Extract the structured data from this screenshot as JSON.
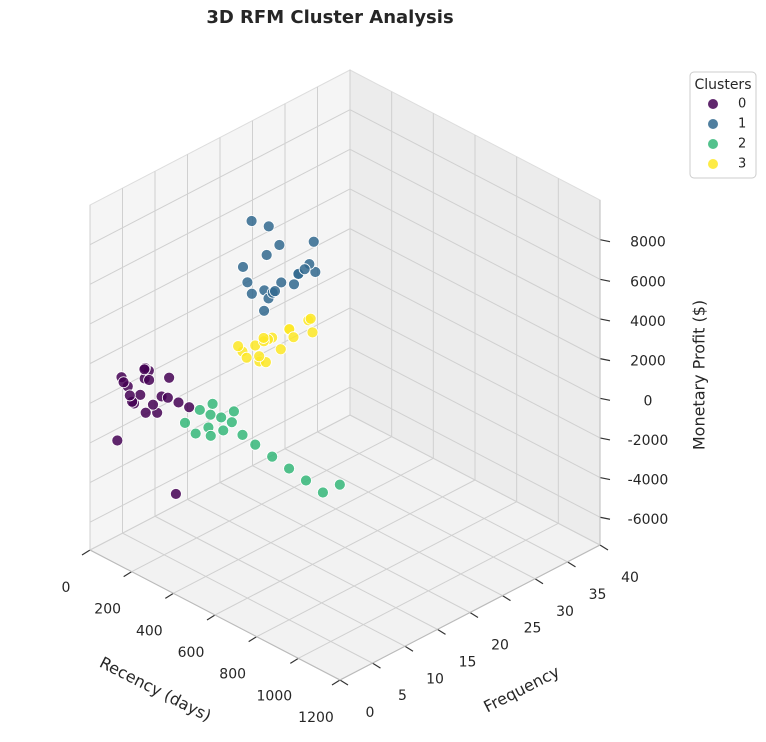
{
  "chart_data": {
    "type": "scatter3d",
    "title": "3D RFM Cluster Analysis",
    "xlabel": "Recency (days)",
    "ylabel": "Frequency",
    "zlabel": "Monetary Profit ($)",
    "legend_title": "Clusters",
    "legend_position": "upper right",
    "xlim": [
      0,
      1200
    ],
    "ylim": [
      0,
      40
    ],
    "zlim": [
      -7400,
      10000
    ],
    "xticks": [
      0,
      200,
      400,
      600,
      800,
      1000,
      1200
    ],
    "yticks": [
      0,
      5,
      10,
      15,
      20,
      25,
      30,
      35,
      40
    ],
    "zticks": [
      -6000,
      -4000,
      -2000,
      0,
      2000,
      4000,
      6000,
      8000
    ],
    "grid": true,
    "series": [
      {
        "name": "0",
        "color": "#440154",
        "x": [
          150,
          200,
          250,
          180,
          220,
          120,
          300,
          260,
          170,
          210,
          240,
          140,
          190,
          230,
          280,
          160,
          205,
          255,
          130,
          320,
          350,
          100
        ],
        "y": [
          1,
          2,
          3,
          1,
          2,
          1,
          4,
          2,
          3,
          1,
          2,
          2,
          3,
          1,
          3,
          1,
          2,
          4,
          1,
          5,
          2,
          1
        ],
        "z": [
          1500,
          2000,
          1200,
          800,
          2500,
          1800,
          1000,
          600,
          2200,
          1400,
          900,
          500,
          1700,
          2800,
          1300,
          1100,
          300,
          2000,
          1600,
          700,
          -3000,
          -1500
        ]
      },
      {
        "name": "1",
        "color": "#31688e",
        "x": [
          400,
          450,
          350,
          500,
          420,
          380,
          470,
          430,
          360,
          520,
          410,
          440,
          390,
          480,
          460,
          370,
          420,
          500,
          340,
          450
        ],
        "y": [
          14,
          15,
          13,
          16,
          14,
          15,
          17,
          13,
          12,
          18,
          16,
          14,
          15,
          16,
          19,
          13,
          15,
          17,
          14,
          20
        ],
        "z": [
          5500,
          6000,
          5800,
          6500,
          5200,
          7000,
          6200,
          4800,
          6800,
          6400,
          7500,
          5600,
          8500,
          5900,
          6300,
          9000,
          5400,
          6600,
          5000,
          7200
        ]
      },
      {
        "name": "2",
        "color": "#35b779",
        "x": [
          350,
          380,
          320,
          400,
          360,
          420,
          340,
          300,
          450,
          390,
          370,
          500,
          550,
          600,
          650,
          700,
          330,
          410
        ],
        "y": [
          7,
          8,
          6,
          9,
          7,
          10,
          6,
          5,
          11,
          8,
          7,
          12,
          13,
          14,
          15,
          16,
          8,
          9
        ],
        "z": [
          -500,
          0,
          -800,
          -300,
          200,
          -1000,
          500,
          -200,
          -1500,
          -600,
          800,
          -2000,
          -2500,
          -3000,
          -3500,
          -3000,
          -1200,
          300
        ]
      },
      {
        "name": "3",
        "color": "#fde725",
        "x": [
          450,
          500,
          420,
          550,
          480,
          470,
          520,
          440,
          580,
          460,
          510,
          490,
          430,
          540,
          560,
          470,
          500,
          600
        ],
        "y": [
          11,
          12,
          10,
          13,
          12,
          11,
          14,
          10,
          15,
          12,
          13,
          11,
          9,
          14,
          16,
          12,
          10,
          15
        ],
        "z": [
          3500,
          4000,
          3200,
          4500,
          3800,
          2800,
          4200,
          3000,
          4800,
          3600,
          3300,
          4100,
          3700,
          3900,
          4600,
          2600,
          3400,
          4300
        ]
      }
    ]
  }
}
